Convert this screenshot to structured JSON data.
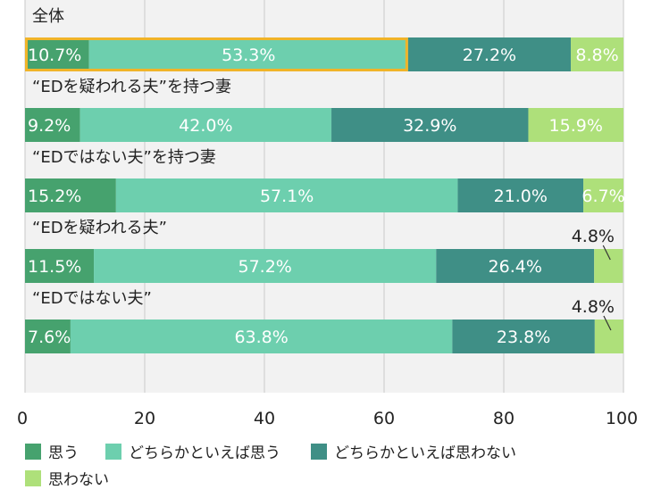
{
  "chart_data": {
    "type": "bar",
    "orientation": "horizontal",
    "stacked": true,
    "xlim": [
      0,
      100
    ],
    "x_ticks": [
      "0",
      "20",
      "40",
      "60",
      "80",
      "100"
    ],
    "grid": true,
    "legend_position": "bottom",
    "categories": [
      "全体",
      "“EDを疑われる夫”を持つ妻",
      "“EDではない夫”を持つ妻",
      "“EDを疑われる夫”",
      "“EDではない夫”"
    ],
    "series": [
      {
        "name": "思う",
        "color": "#46a26e",
        "values": [
          10.7,
          9.2,
          15.2,
          11.5,
          7.6
        ],
        "labels": [
          "10.7%",
          "9.2%",
          "15.2%",
          "11.5%",
          "7.6%"
        ]
      },
      {
        "name": "どちらかといえば思う",
        "color": "#6dcfae",
        "values": [
          53.3,
          42.0,
          57.1,
          57.2,
          63.8
        ],
        "labels": [
          "53.3%",
          "42.0%",
          "57.1%",
          "57.2%",
          "63.8%"
        ]
      },
      {
        "name": "どちらかといえば思わない",
        "color": "#3f8f86",
        "values": [
          27.2,
          32.9,
          21.0,
          26.4,
          23.8
        ],
        "labels": [
          "27.2%",
          "32.9%",
          "21.0%",
          "26.4%",
          "23.8%"
        ]
      },
      {
        "name": "思わない",
        "color": "#aee07a",
        "values": [
          8.8,
          15.9,
          6.7,
          4.8,
          4.8
        ],
        "labels": [
          "8.8%",
          "15.9%",
          "6.7%",
          "4.8%",
          "4.8%"
        ]
      }
    ],
    "highlight": {
      "row": 0,
      "segments": [
        0,
        1
      ],
      "color": "#f0b429"
    }
  }
}
